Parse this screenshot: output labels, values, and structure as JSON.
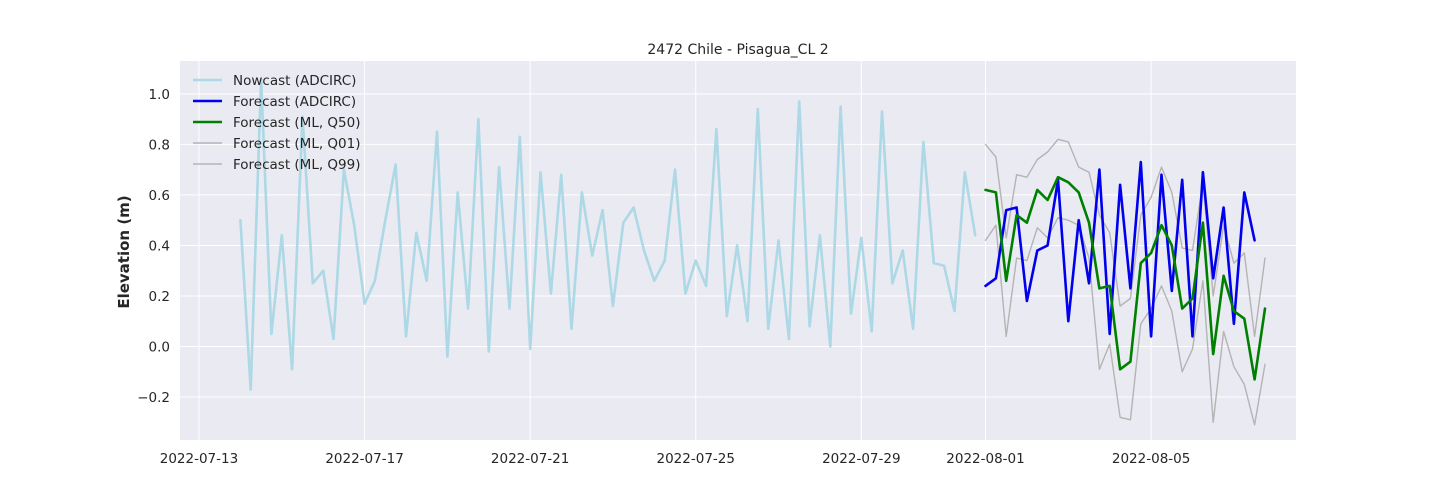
{
  "chart_data": {
    "type": "line",
    "title": "2472 Chile - Pisagua_CL 2",
    "xlabel": "",
    "ylabel": "Elevation (m)",
    "xlim": [
      "2022-07-12T13:00",
      "2022-08-08T12:00"
    ],
    "ylim": [
      -0.37,
      1.13
    ],
    "x_ticks": [
      "2022-07-13",
      "2022-07-17",
      "2022-07-21",
      "2022-07-25",
      "2022-07-29",
      "2022-08-01",
      "2022-08-05"
    ],
    "y_ticks": [
      -0.2,
      0.0,
      0.2,
      0.4,
      0.6,
      0.8,
      1.0
    ],
    "grid": true,
    "legend_position": "top-left",
    "colors": {
      "background": "#eaeaf2",
      "grid": "#ffffff",
      "nowcast": "#add8e6",
      "forecast_adcirc": "#0000ee",
      "forecast_q50": "#008000",
      "forecast_quantiles": "#b4b4b4"
    },
    "series": [
      {
        "name": "Nowcast (ADCIRC)",
        "style": "nowcast",
        "points": [
          [
            "2022-07-14T00:00",
            0.5
          ],
          [
            "2022-07-14T06:00",
            -0.17
          ],
          [
            "2022-07-14T12:00",
            1.06
          ],
          [
            "2022-07-14T18:00",
            0.05
          ],
          [
            "2022-07-15T00:00",
            0.44
          ],
          [
            "2022-07-15T06:00",
            -0.09
          ],
          [
            "2022-07-15T12:00",
            0.91
          ],
          [
            "2022-07-15T18:00",
            0.25
          ],
          [
            "2022-07-16T00:00",
            0.3
          ],
          [
            "2022-07-16T06:00",
            0.03
          ],
          [
            "2022-07-16T12:00",
            0.7
          ],
          [
            "2022-07-16T18:00",
            0.48
          ],
          [
            "2022-07-17T00:00",
            0.17
          ],
          [
            "2022-07-17T06:00",
            0.26
          ],
          [
            "2022-07-17T12:00",
            0.5
          ],
          [
            "2022-07-17T18:00",
            0.72
          ],
          [
            "2022-07-18T00:00",
            0.04
          ],
          [
            "2022-07-18T06:00",
            0.45
          ],
          [
            "2022-07-18T12:00",
            0.26
          ],
          [
            "2022-07-18T18:00",
            0.85
          ],
          [
            "2022-07-19T00:00",
            -0.04
          ],
          [
            "2022-07-19T06:00",
            0.61
          ],
          [
            "2022-07-19T12:00",
            0.15
          ],
          [
            "2022-07-19T18:00",
            0.9
          ],
          [
            "2022-07-20T00:00",
            -0.02
          ],
          [
            "2022-07-20T06:00",
            0.71
          ],
          [
            "2022-07-20T12:00",
            0.15
          ],
          [
            "2022-07-20T18:00",
            0.83
          ],
          [
            "2022-07-21T00:00",
            -0.01
          ],
          [
            "2022-07-21T06:00",
            0.69
          ],
          [
            "2022-07-21T12:00",
            0.21
          ],
          [
            "2022-07-21T18:00",
            0.68
          ],
          [
            "2022-07-22T00:00",
            0.07
          ],
          [
            "2022-07-22T06:00",
            0.61
          ],
          [
            "2022-07-22T12:00",
            0.36
          ],
          [
            "2022-07-22T18:00",
            0.54
          ],
          [
            "2022-07-23T00:00",
            0.16
          ],
          [
            "2022-07-23T06:00",
            0.49
          ],
          [
            "2022-07-23T12:00",
            0.55
          ],
          [
            "2022-07-23T18:00",
            0.38
          ],
          [
            "2022-07-24T00:00",
            0.26
          ],
          [
            "2022-07-24T06:00",
            0.34
          ],
          [
            "2022-07-24T12:00",
            0.7
          ],
          [
            "2022-07-24T18:00",
            0.21
          ],
          [
            "2022-07-25T00:00",
            0.34
          ],
          [
            "2022-07-25T06:00",
            0.24
          ],
          [
            "2022-07-25T12:00",
            0.86
          ],
          [
            "2022-07-25T18:00",
            0.12
          ],
          [
            "2022-07-26T00:00",
            0.4
          ],
          [
            "2022-07-26T06:00",
            0.1
          ],
          [
            "2022-07-26T12:00",
            0.94
          ],
          [
            "2022-07-26T18:00",
            0.07
          ],
          [
            "2022-07-27T00:00",
            0.42
          ],
          [
            "2022-07-27T06:00",
            0.03
          ],
          [
            "2022-07-27T12:00",
            0.97
          ],
          [
            "2022-07-27T18:00",
            0.08
          ],
          [
            "2022-07-28T00:00",
            0.44
          ],
          [
            "2022-07-28T06:00",
            0.0
          ],
          [
            "2022-07-28T12:00",
            0.95
          ],
          [
            "2022-07-28T18:00",
            0.13
          ],
          [
            "2022-07-29T00:00",
            0.43
          ],
          [
            "2022-07-29T06:00",
            0.06
          ],
          [
            "2022-07-29T12:00",
            0.93
          ],
          [
            "2022-07-29T18:00",
            0.25
          ],
          [
            "2022-07-30T00:00",
            0.38
          ],
          [
            "2022-07-30T06:00",
            0.07
          ],
          [
            "2022-07-30T12:00",
            0.81
          ],
          [
            "2022-07-30T18:00",
            0.33
          ],
          [
            "2022-07-31T00:00",
            0.32
          ],
          [
            "2022-07-31T06:00",
            0.14
          ],
          [
            "2022-07-31T12:00",
            0.69
          ],
          [
            "2022-07-31T18:00",
            0.44
          ]
        ]
      },
      {
        "name": "Forecast (ADCIRC)",
        "style": "forecast_adcirc",
        "points": [
          [
            "2022-08-01T00:00",
            0.24
          ],
          [
            "2022-08-01T06:00",
            0.27
          ],
          [
            "2022-08-01T12:00",
            0.54
          ],
          [
            "2022-08-01T18:00",
            0.55
          ],
          [
            "2022-08-02T00:00",
            0.18
          ],
          [
            "2022-08-02T06:00",
            0.38
          ],
          [
            "2022-08-02T12:00",
            0.4
          ],
          [
            "2022-08-02T18:00",
            0.66
          ],
          [
            "2022-08-03T00:00",
            0.1
          ],
          [
            "2022-08-03T06:00",
            0.5
          ],
          [
            "2022-08-03T12:00",
            0.25
          ],
          [
            "2022-08-03T18:00",
            0.7
          ],
          [
            "2022-08-04T00:00",
            0.05
          ],
          [
            "2022-08-04T06:00",
            0.64
          ],
          [
            "2022-08-04T12:00",
            0.23
          ],
          [
            "2022-08-04T18:00",
            0.73
          ],
          [
            "2022-08-05T00:00",
            0.04
          ],
          [
            "2022-08-05T06:00",
            0.68
          ],
          [
            "2022-08-05T12:00",
            0.22
          ],
          [
            "2022-08-05T18:00",
            0.66
          ],
          [
            "2022-08-06T00:00",
            0.04
          ],
          [
            "2022-08-06T06:00",
            0.69
          ],
          [
            "2022-08-06T12:00",
            0.27
          ],
          [
            "2022-08-06T18:00",
            0.55
          ],
          [
            "2022-08-07T00:00",
            0.09
          ],
          [
            "2022-08-07T06:00",
            0.61
          ],
          [
            "2022-08-07T12:00",
            0.42
          ]
        ]
      },
      {
        "name": "Forecast (ML, Q50)",
        "style": "forecast_q50",
        "points": [
          [
            "2022-08-01T00:00",
            0.62
          ],
          [
            "2022-08-01T06:00",
            0.61
          ],
          [
            "2022-08-01T12:00",
            0.26
          ],
          [
            "2022-08-01T18:00",
            0.52
          ],
          [
            "2022-08-02T00:00",
            0.49
          ],
          [
            "2022-08-02T06:00",
            0.62
          ],
          [
            "2022-08-02T12:00",
            0.58
          ],
          [
            "2022-08-02T18:00",
            0.67
          ],
          [
            "2022-08-03T00:00",
            0.65
          ],
          [
            "2022-08-03T06:00",
            0.61
          ],
          [
            "2022-08-03T12:00",
            0.49
          ],
          [
            "2022-08-03T18:00",
            0.23
          ],
          [
            "2022-08-04T00:00",
            0.24
          ],
          [
            "2022-08-04T06:00",
            -0.09
          ],
          [
            "2022-08-04T12:00",
            -0.06
          ],
          [
            "2022-08-04T18:00",
            0.33
          ],
          [
            "2022-08-05T00:00",
            0.37
          ],
          [
            "2022-08-05T06:00",
            0.48
          ],
          [
            "2022-08-05T12:00",
            0.4
          ],
          [
            "2022-08-05T18:00",
            0.15
          ],
          [
            "2022-08-06T00:00",
            0.19
          ],
          [
            "2022-08-06T06:00",
            0.49
          ],
          [
            "2022-08-06T12:00",
            -0.03
          ],
          [
            "2022-08-06T18:00",
            0.28
          ],
          [
            "2022-08-07T00:00",
            0.14
          ],
          [
            "2022-08-07T06:00",
            0.11
          ],
          [
            "2022-08-07T12:00",
            -0.13
          ],
          [
            "2022-08-07T18:00",
            0.15
          ]
        ]
      },
      {
        "name": "Forecast (ML, Q01)",
        "style": "forecast_quantiles",
        "points": [
          [
            "2022-08-01T00:00",
            0.42
          ],
          [
            "2022-08-01T06:00",
            0.48
          ],
          [
            "2022-08-01T12:00",
            0.04
          ],
          [
            "2022-08-01T18:00",
            0.35
          ],
          [
            "2022-08-02T00:00",
            0.34
          ],
          [
            "2022-08-02T06:00",
            0.47
          ],
          [
            "2022-08-02T12:00",
            0.43
          ],
          [
            "2022-08-02T18:00",
            0.51
          ],
          [
            "2022-08-03T00:00",
            0.5
          ],
          [
            "2022-08-03T06:00",
            0.48
          ],
          [
            "2022-08-03T12:00",
            0.35
          ],
          [
            "2022-08-03T18:00",
            -0.09
          ],
          [
            "2022-08-04T00:00",
            0.01
          ],
          [
            "2022-08-04T06:00",
            -0.28
          ],
          [
            "2022-08-04T12:00",
            -0.29
          ],
          [
            "2022-08-04T18:00",
            0.09
          ],
          [
            "2022-08-05T00:00",
            0.15
          ],
          [
            "2022-08-05T06:00",
            0.24
          ],
          [
            "2022-08-05T12:00",
            0.14
          ],
          [
            "2022-08-05T18:00",
            -0.1
          ],
          [
            "2022-08-06T00:00",
            -0.01
          ],
          [
            "2022-08-06T06:00",
            0.26
          ],
          [
            "2022-08-06T12:00",
            -0.3
          ],
          [
            "2022-08-06T18:00",
            0.06
          ],
          [
            "2022-08-07T00:00",
            -0.08
          ],
          [
            "2022-08-07T06:00",
            -0.15
          ],
          [
            "2022-08-07T12:00",
            -0.31
          ],
          [
            "2022-08-07T18:00",
            -0.07
          ]
        ]
      },
      {
        "name": "Forecast (ML, Q99)",
        "style": "forecast_quantiles",
        "points": [
          [
            "2022-08-01T00:00",
            0.8
          ],
          [
            "2022-08-01T06:00",
            0.75
          ],
          [
            "2022-08-01T12:00",
            0.43
          ],
          [
            "2022-08-01T18:00",
            0.68
          ],
          [
            "2022-08-02T00:00",
            0.67
          ],
          [
            "2022-08-02T06:00",
            0.74
          ],
          [
            "2022-08-02T12:00",
            0.77
          ],
          [
            "2022-08-02T18:00",
            0.82
          ],
          [
            "2022-08-03T00:00",
            0.81
          ],
          [
            "2022-08-03T06:00",
            0.71
          ],
          [
            "2022-08-03T12:00",
            0.69
          ],
          [
            "2022-08-03T18:00",
            0.52
          ],
          [
            "2022-08-04T00:00",
            0.45
          ],
          [
            "2022-08-04T06:00",
            0.16
          ],
          [
            "2022-08-04T12:00",
            0.19
          ],
          [
            "2022-08-04T18:00",
            0.52
          ],
          [
            "2022-08-05T00:00",
            0.59
          ],
          [
            "2022-08-05T06:00",
            0.71
          ],
          [
            "2022-08-05T12:00",
            0.61
          ],
          [
            "2022-08-05T18:00",
            0.39
          ],
          [
            "2022-08-06T00:00",
            0.38
          ],
          [
            "2022-08-06T06:00",
            0.65
          ],
          [
            "2022-08-06T12:00",
            0.2
          ],
          [
            "2022-08-06T18:00",
            0.48
          ],
          [
            "2022-08-07T00:00",
            0.33
          ],
          [
            "2022-08-07T06:00",
            0.37
          ],
          [
            "2022-08-07T12:00",
            0.04
          ],
          [
            "2022-08-07T18:00",
            0.35
          ]
        ]
      }
    ]
  }
}
